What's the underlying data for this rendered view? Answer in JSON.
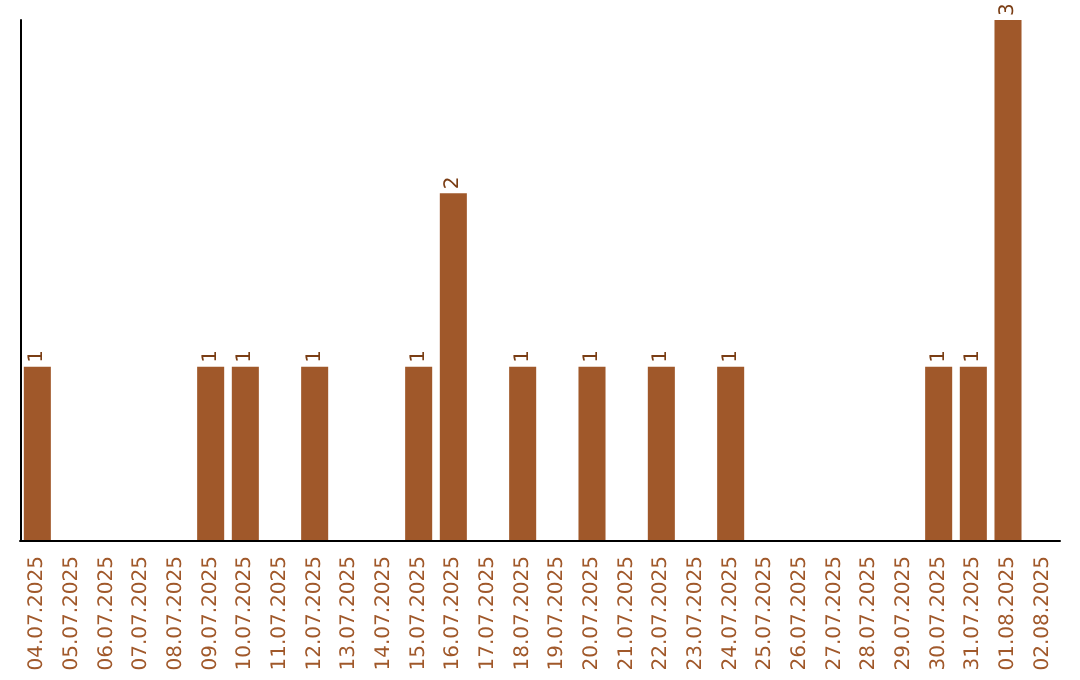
{
  "chart_data": {
    "type": "bar",
    "categories": [
      "04.07.2025",
      "05.07.2025",
      "06.07.2025",
      "07.07.2025",
      "08.07.2025",
      "09.07.2025",
      "10.07.2025",
      "11.07.2025",
      "12.07.2025",
      "13.07.2025",
      "14.07.2025",
      "15.07.2025",
      "16.07.2025",
      "17.07.2025",
      "18.07.2025",
      "19.07.2025",
      "20.07.2025",
      "21.07.2025",
      "22.07.2025",
      "23.07.2025",
      "24.07.2025",
      "25.07.2025",
      "26.07.2025",
      "27.07.2025",
      "28.07.2025",
      "29.07.2025",
      "30.07.2025",
      "31.07.2025",
      "01.08.2025",
      "02.08.2025"
    ],
    "values": [
      1,
      0,
      0,
      0,
      0,
      1,
      1,
      0,
      1,
      0,
      0,
      1,
      2,
      0,
      1,
      0,
      1,
      0,
      1,
      0,
      1,
      0,
      0,
      0,
      0,
      0,
      1,
      1,
      3,
      0
    ],
    "value_labels": [
      "1",
      null,
      null,
      null,
      null,
      "1",
      "1",
      null,
      "1",
      null,
      null,
      "1",
      "2",
      null,
      "1",
      null,
      "1",
      null,
      "1",
      null,
      "1",
      null,
      null,
      null,
      null,
      null,
      "1",
      "1",
      "3",
      null
    ],
    "color": "#a0582a",
    "tick_labels": "x"
  }
}
